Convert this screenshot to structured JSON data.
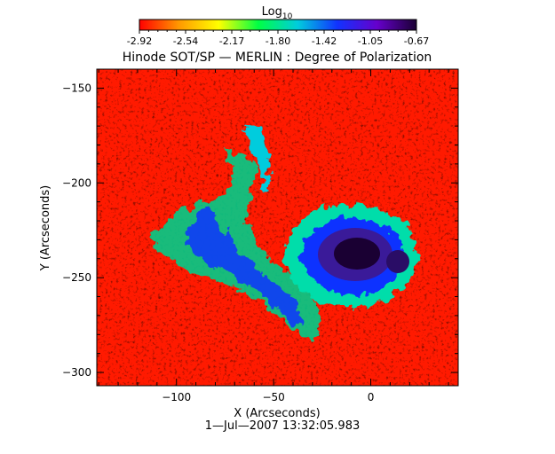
{
  "colorbar": {
    "label_main": "Log",
    "label_sub": "10",
    "ticks": [
      "-2.92",
      "-2.54",
      "-2.17",
      "-1.80",
      "-1.42",
      "-1.05",
      "-0.67"
    ],
    "colors": [
      "#ff0000",
      "#ff9900",
      "#ffff00",
      "#00ff44",
      "#00ccdd",
      "#1133ff",
      "#6600cc",
      "#1a0033"
    ]
  },
  "chart_data": {
    "type": "heatmap",
    "title": "Hinode SOT/SP — MERLIN : Degree of Polarization",
    "xlabel": "X (Arcseconds)",
    "ylabel": "Y (Arcseconds)",
    "xlim": [
      -141,
      45
    ],
    "ylim": [
      -307,
      -140
    ],
    "x_ticks": [
      -100,
      -50,
      0
    ],
    "y_ticks": [
      -150,
      -200,
      -250,
      -300
    ],
    "value_range": [
      -2.92,
      -0.67
    ],
    "value_scale": "log10",
    "features": [
      {
        "name": "sunspot umbra",
        "x": -10,
        "y": -237,
        "value": -0.67
      },
      {
        "name": "secondary pore",
        "x": 13,
        "y": -242,
        "value": -0.8
      }
    ],
    "timestamp": "1—Jul—2007 13:32:05.983"
  }
}
